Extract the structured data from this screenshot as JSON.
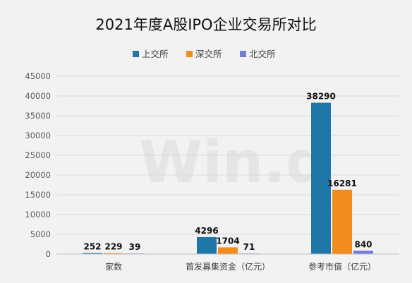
{
  "chart_data": {
    "type": "bar",
    "title": "2021年度A股IPO企业交易所对比",
    "watermark": "Win.d",
    "categories": [
      "家数",
      "首发募集资金（亿元）",
      "参考市值（亿元）"
    ],
    "series": [
      {
        "name": "上交所",
        "values": [
          252,
          4296,
          38290
        ],
        "color": "#1f77a8"
      },
      {
        "name": "深交所",
        "values": [
          229,
          1704,
          16281
        ],
        "color": "#f28c1e"
      },
      {
        "name": "北交所",
        "values": [
          39,
          71,
          840
        ],
        "color": "#6f7fd9"
      }
    ],
    "ylim": [
      0,
      45000
    ],
    "yticks": [
      0,
      5000,
      10000,
      15000,
      20000,
      25000,
      30000,
      35000,
      40000,
      45000
    ],
    "grid": true,
    "legend_position": "top"
  }
}
